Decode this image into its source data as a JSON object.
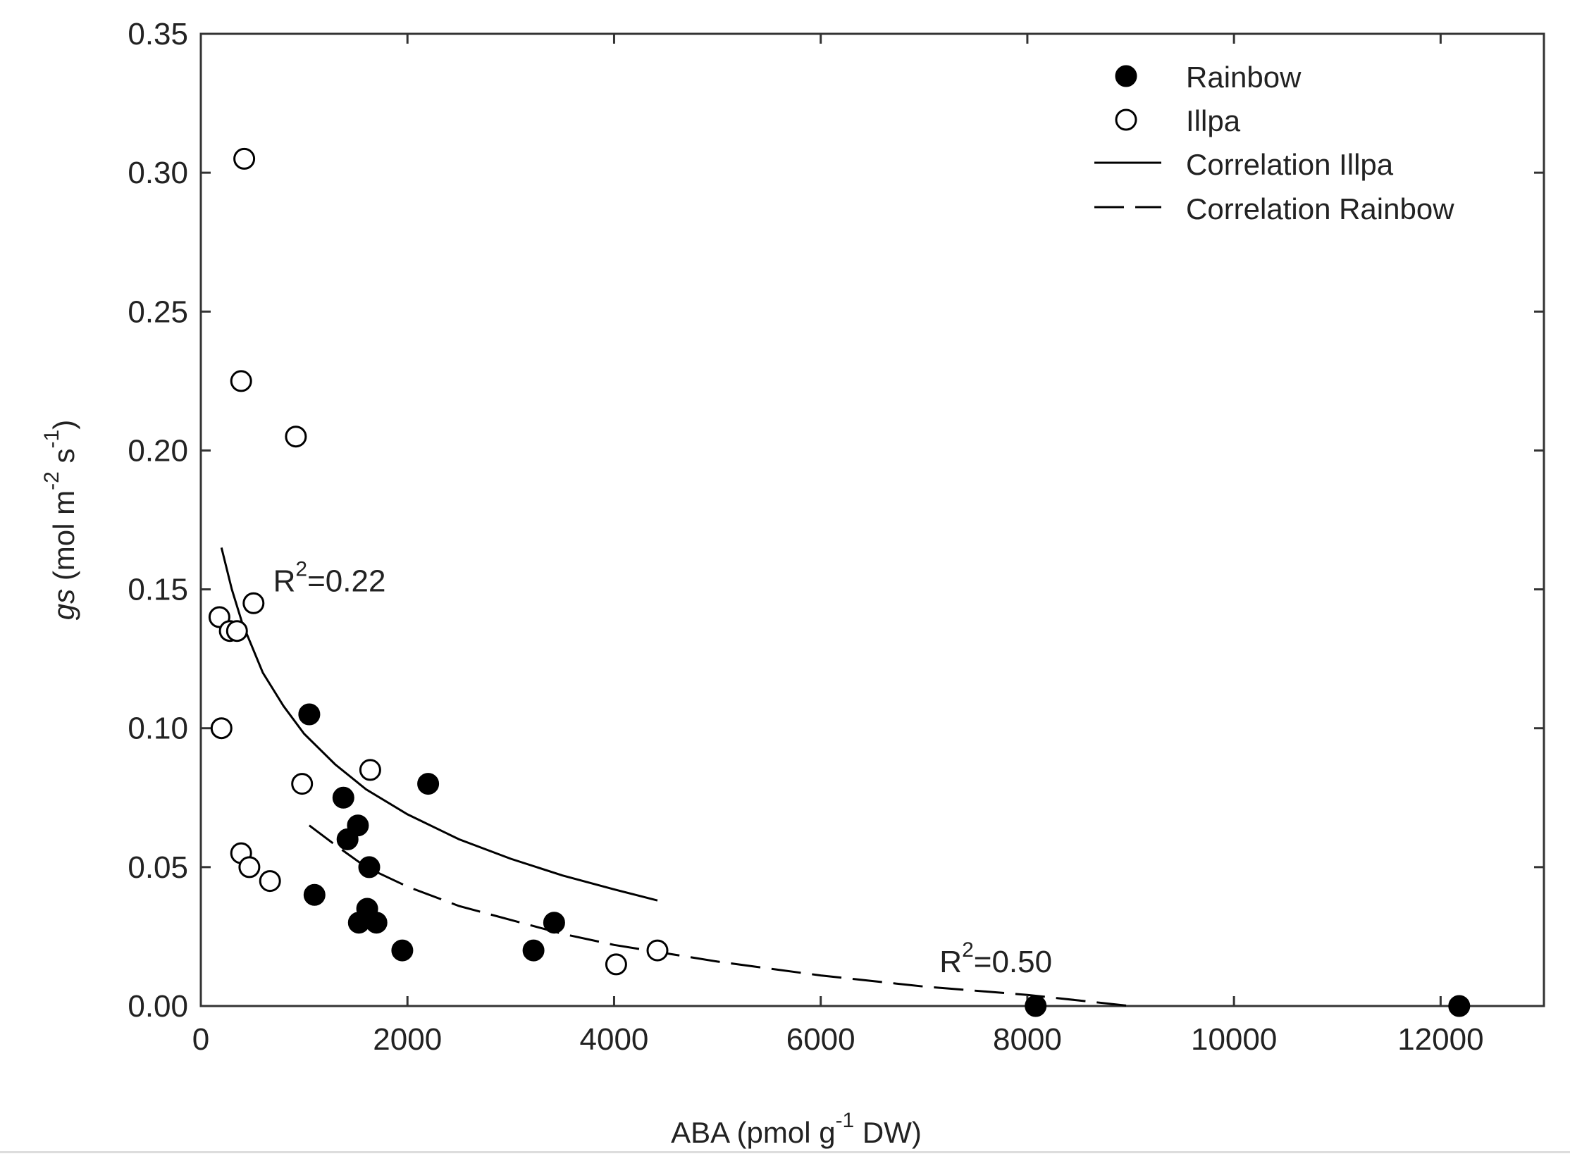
{
  "chart_data": {
    "type": "scatter",
    "title": "",
    "xlabel": "ABA (pmol g-1 DW)",
    "xlabel_parts": {
      "main": "ABA (pmol g",
      "sup": "-1",
      "tail": " DW)"
    },
    "ylabel": "gs (mol m-2 s-1)",
    "ylabel_parts": {
      "italic": "gs",
      "main1": " (mol m",
      "sup1": "-2",
      "main2": " s",
      "sup2": "-1",
      "tail": ")"
    },
    "xlim": [
      0,
      13000
    ],
    "ylim": [
      0,
      0.35
    ],
    "x_ticks": [
      0,
      2000,
      4000,
      6000,
      8000,
      10000,
      12000
    ],
    "x_tick_labels": [
      "0",
      "2000",
      "4000",
      "6000",
      "8000",
      "10000",
      "12000"
    ],
    "y_ticks": [
      0,
      0.05,
      0.1,
      0.15,
      0.2,
      0.25,
      0.3,
      0.35
    ],
    "y_tick_labels": [
      "0.00",
      "0.05",
      "0.10",
      "0.15",
      "0.20",
      "0.25",
      "0.30",
      "0.35"
    ],
    "grid": false,
    "legend_position": "top-right",
    "series": [
      {
        "name": "Rainbow",
        "marker": "filled-circle",
        "color": "#000000",
        "points": [
          {
            "x": 1050,
            "y": 0.105
          },
          {
            "x": 2200,
            "y": 0.08
          },
          {
            "x": 1380,
            "y": 0.075
          },
          {
            "x": 1520,
            "y": 0.065
          },
          {
            "x": 1420,
            "y": 0.06
          },
          {
            "x": 1630,
            "y": 0.05
          },
          {
            "x": 1100,
            "y": 0.04
          },
          {
            "x": 1610,
            "y": 0.035
          },
          {
            "x": 1530,
            "y": 0.03
          },
          {
            "x": 1700,
            "y": 0.03
          },
          {
            "x": 3420,
            "y": 0.03
          },
          {
            "x": 1950,
            "y": 0.02
          },
          {
            "x": 3220,
            "y": 0.02
          },
          {
            "x": 8080,
            "y": 0.0
          },
          {
            "x": 12180,
            "y": 0.0
          }
        ]
      },
      {
        "name": "Illpa",
        "marker": "open-circle",
        "color": "#000000",
        "points": [
          {
            "x": 420,
            "y": 0.305
          },
          {
            "x": 390,
            "y": 0.225
          },
          {
            "x": 920,
            "y": 0.205
          },
          {
            "x": 510,
            "y": 0.145
          },
          {
            "x": 180,
            "y": 0.14
          },
          {
            "x": 280,
            "y": 0.135
          },
          {
            "x": 350,
            "y": 0.135
          },
          {
            "x": 200,
            "y": 0.1
          },
          {
            "x": 1640,
            "y": 0.085
          },
          {
            "x": 980,
            "y": 0.08
          },
          {
            "x": 390,
            "y": 0.055
          },
          {
            "x": 470,
            "y": 0.05
          },
          {
            "x": 670,
            "y": 0.045
          },
          {
            "x": 4420,
            "y": 0.02
          },
          {
            "x": 4020,
            "y": 0.015
          }
        ]
      }
    ],
    "fits": [
      {
        "name": "Correlation Illpa",
        "style": "solid",
        "x": [
          200,
          300,
          400,
          600,
          800,
          1000,
          1300,
          1600,
          2000,
          2500,
          3000,
          3500,
          4000,
          4420
        ],
        "y": [
          0.165,
          0.15,
          0.138,
          0.12,
          0.108,
          0.098,
          0.087,
          0.078,
          0.069,
          0.06,
          0.053,
          0.047,
          0.042,
          0.038
        ]
      },
      {
        "name": "Correlation Rainbow",
        "style": "dashed",
        "x": [
          1050,
          1300,
          1600,
          2000,
          2500,
          3000,
          3500,
          4000,
          4500,
          5000,
          6000,
          7000,
          8000,
          8500,
          9000
        ],
        "y": [
          0.065,
          0.058,
          0.05,
          0.043,
          0.036,
          0.031,
          0.026,
          0.022,
          0.019,
          0.016,
          0.011,
          0.007,
          0.004,
          0.002,
          0.0
        ]
      }
    ],
    "annotations": [
      {
        "label": "R2=0.22",
        "main": "R",
        "sup": "2",
        "tail": "=0.22",
        "x": 700,
        "y": 0.153
      },
      {
        "label": "R2=0.50",
        "main": "R",
        "sup": "2",
        "tail": "=0.50",
        "x": 7150,
        "y": 0.016
      }
    ],
    "legend": [
      {
        "label": "Rainbow",
        "symbol": "filled-circle"
      },
      {
        "label": "Illpa",
        "symbol": "open-circle"
      },
      {
        "label": "Correlation Illpa",
        "symbol": "solid-line"
      },
      {
        "label": "Correlation Rainbow",
        "symbol": "dashed-line"
      }
    ]
  }
}
